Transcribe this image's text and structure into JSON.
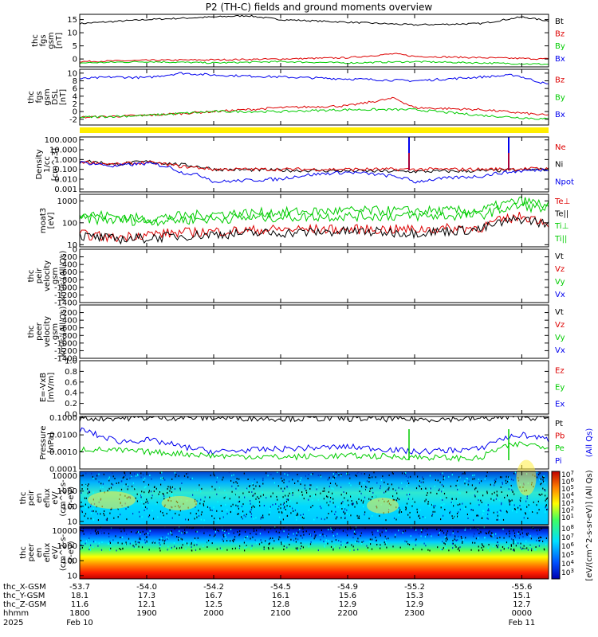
{
  "title": "P2 (TH-C) fields and ground moments overview",
  "chart_data": [
    {
      "type": "line",
      "panel": "fgs_gsm",
      "ylabel": [
        "thc",
        "fgs",
        "gsm",
        "[nT]"
      ],
      "yticks": [
        "15",
        "10",
        "5",
        "0"
      ],
      "ylim": [
        -3,
        17
      ],
      "legend": [
        {
          "name": "Bt",
          "color": "#000000"
        },
        {
          "name": "Bz",
          "color": "#dd0000"
        },
        {
          "name": "By",
          "color": "#00cc00"
        },
        {
          "name": "Bx",
          "color": "#0000ee"
        }
      ],
      "series": [
        {
          "name": "Bt",
          "x": [
            0,
            1,
            2,
            2.5,
            3,
            4,
            5,
            6,
            6.6,
            7
          ],
          "values": [
            13.5,
            15,
            16,
            16.5,
            15,
            14,
            13,
            13.5,
            16,
            14.5
          ]
        },
        {
          "name": "Bz",
          "x": [
            0,
            1,
            2,
            3,
            4,
            4.7,
            5,
            6,
            7
          ],
          "values": [
            -1,
            -0.5,
            -0.3,
            0,
            0.5,
            2,
            1,
            0.5,
            0
          ]
        },
        {
          "name": "By",
          "x": [
            0,
            1,
            2,
            3,
            4,
            5,
            6,
            7
          ],
          "values": [
            -1.5,
            -1,
            -1.5,
            -1,
            -1.5,
            -1,
            -1.5,
            -2
          ]
        }
      ]
    },
    {
      "type": "line",
      "panel": "fgs_gse",
      "ylabel": [
        "thc",
        "fgs",
        "gsm",
        "DSL",
        "[nT]"
      ],
      "yticks": [
        "10",
        "8",
        "6",
        "4",
        "2",
        "0",
        "-2"
      ],
      "ylim": [
        -3.5,
        11
      ],
      "legend": [
        {
          "name": "Bz",
          "color": "#dd0000"
        },
        {
          "name": "By",
          "color": "#00cc00"
        },
        {
          "name": "Bx",
          "color": "#0000ee"
        }
      ],
      "series": [
        {
          "name": "Bx",
          "x": [
            0,
            0.5,
            1,
            1.5,
            2,
            3,
            4,
            5,
            6,
            6.5,
            7
          ],
          "values": [
            8.5,
            9,
            8.8,
            10,
            9.5,
            9,
            8.5,
            8,
            9,
            9.5,
            7
          ]
        },
        {
          "name": "Bz",
          "x": [
            0,
            1,
            2,
            3,
            4,
            4.7,
            5,
            6,
            7
          ],
          "values": [
            -1.5,
            -1,
            0,
            1,
            1.5,
            3.5,
            1,
            0.5,
            -1
          ]
        },
        {
          "name": "By",
          "x": [
            0,
            1,
            2,
            3,
            4,
            5,
            6,
            7
          ],
          "values": [
            -1.5,
            -1,
            0,
            0,
            0.5,
            0.5,
            -1,
            -2
          ]
        }
      ]
    },
    {
      "type": "line",
      "panel": "density",
      "ylabel": [
        "Density",
        "1/cc",
        "[cm^-3]"
      ],
      "yticks": [
        "100.000",
        "10.000",
        "1.000",
        "0.100",
        "0.010",
        "0.001"
      ],
      "ylim": [
        0.0005,
        200
      ],
      "scale": "log",
      "legend": [
        {
          "name": "Ne",
          "color": "#dd0000"
        },
        {
          "name": "Ni",
          "color": "#000000"
        },
        {
          "name": "Npot",
          "color": "#0000ee"
        }
      ],
      "series": [
        {
          "name": "Ni",
          "x": [
            0,
            0.5,
            1,
            1.5,
            2,
            3,
            4,
            5,
            6,
            7
          ],
          "values": [
            0.8,
            0.3,
            0.6,
            0.3,
            0.1,
            0.08,
            0.07,
            0.06,
            0.07,
            0.1
          ]
        },
        {
          "name": "Ne",
          "x": [
            0,
            0.5,
            1,
            1.5,
            2,
            3,
            4,
            5,
            6,
            7
          ],
          "values": [
            0.6,
            0.3,
            0.5,
            0.2,
            0.1,
            0.1,
            0.1,
            0.1,
            0.1,
            0.12
          ]
        },
        {
          "name": "Npot",
          "x": [
            0,
            0.5,
            1,
            1.5,
            2,
            3,
            4,
            5,
            6,
            7
          ],
          "values": [
            0.5,
            0.2,
            0.4,
            0.05,
            0.005,
            0.01,
            0.05,
            0.005,
            0.02,
            0.1
          ]
        }
      ]
    },
    {
      "type": "line",
      "panel": "temperature",
      "ylabel": [
        "moat3",
        "[eV]"
      ],
      "yticks": [
        "1000",
        "100",
        "10"
      ],
      "ylim": [
        8,
        2000
      ],
      "scale": "log",
      "legend": [
        {
          "name": "Te⊥",
          "color": "#dd0000"
        },
        {
          "name": "Te||",
          "color": "#000000"
        },
        {
          "name": "Ti⊥",
          "color": "#00cc00"
        },
        {
          "name": "Ti||",
          "color": "#00cc00"
        }
      ],
      "series": [
        {
          "name": "Ti⊥",
          "x": [
            0,
            1,
            2,
            3,
            4,
            5,
            6,
            6.6,
            7
          ],
          "values": [
            250,
            150,
            250,
            300,
            350,
            350,
            350,
            1000,
            600
          ]
        },
        {
          "name": "Ti||",
          "x": [
            0,
            1,
            2,
            3,
            4,
            5,
            6,
            6.6,
            7
          ],
          "values": [
            150,
            120,
            150,
            180,
            200,
            200,
            220,
            600,
            400
          ]
        },
        {
          "name": "Te⊥",
          "x": [
            0,
            0.5,
            1,
            2,
            3,
            4,
            5,
            6,
            6.6,
            7
          ],
          "values": [
            30,
            20,
            30,
            40,
            50,
            50,
            50,
            60,
            200,
            100
          ]
        },
        {
          "name": "Te||",
          "x": [
            0,
            0.5,
            1,
            2,
            3,
            4,
            5,
            6,
            6.6,
            7
          ],
          "values": [
            25,
            18,
            20,
            30,
            35,
            40,
            35,
            50,
            150,
            80
          ]
        }
      ]
    },
    {
      "type": "line",
      "panel": "peir_velocity",
      "ylabel": [
        "thc",
        "peir",
        "velocity",
        "gsm",
        "km/s (All Qs)"
      ],
      "yticks": [
        "0",
        "-200",
        "-400",
        "-600",
        "-800",
        "-1000",
        "-1200",
        "-1400"
      ],
      "ylim": [
        -1400,
        0
      ],
      "legend": [
        {
          "name": "Vt",
          "color": "#000000"
        },
        {
          "name": "Vz",
          "color": "#dd0000"
        },
        {
          "name": "Vy",
          "color": "#00cc00"
        },
        {
          "name": "Vx",
          "color": "#0000ee"
        }
      ],
      "series": []
    },
    {
      "type": "line",
      "panel": "peer_velocity",
      "ylabel": [
        "thc",
        "peer",
        "velocity",
        "gsm",
        "km/s (All Qs)"
      ],
      "yticks": [
        "-200",
        "-400",
        "-600",
        "-800",
        "-1000",
        "-1200",
        "-1400"
      ],
      "ylim": [
        -1400,
        0
      ],
      "legend": [
        {
          "name": "Vt",
          "color": "#000000"
        },
        {
          "name": "Vz",
          "color": "#dd0000"
        },
        {
          "name": "Vy",
          "color": "#00cc00"
        },
        {
          "name": "Vx",
          "color": "#0000ee"
        }
      ],
      "series": []
    },
    {
      "type": "line",
      "panel": "efield",
      "ylabel": [
        "E=-VxB",
        "[mV/m]"
      ],
      "yticks": [
        "1.0",
        "0.8",
        "0.6",
        "0.4",
        "0.2",
        "0.0"
      ],
      "ylim": [
        0,
        1
      ],
      "legend": [
        {
          "name": "Ez",
          "color": "#dd0000"
        },
        {
          "name": "Ey",
          "color": "#00cc00"
        },
        {
          "name": "Ex",
          "color": "#0000ee"
        }
      ],
      "series": []
    },
    {
      "type": "line",
      "panel": "pressure",
      "ylabel": [
        "Pressure",
        "[nPa]"
      ],
      "yticks": [
        "0.1000",
        "0.0100",
        "0.0010",
        "0.0001"
      ],
      "ylim": [
        0.0001,
        0.12
      ],
      "scale": "log",
      "legend": [
        {
          "name": "Pt",
          "color": "#000000"
        },
        {
          "name": "Pb",
          "color": "#dd0000"
        },
        {
          "name": "Pe",
          "color": "#00cc00"
        },
        {
          "name": "Pi",
          "color": "#0000ee"
        }
      ],
      "side_label": "(All Qs)",
      "series": [
        {
          "name": "Pt",
          "x": [
            0,
            1,
            2,
            3,
            4,
            5,
            6,
            6.6,
            7
          ],
          "values": [
            0.09,
            0.1,
            0.1,
            0.09,
            0.09,
            0.08,
            0.09,
            0.11,
            0.09
          ]
        },
        {
          "name": "Pi",
          "x": [
            0,
            0.3,
            0.6,
            1,
            1.5,
            2,
            3,
            4,
            5,
            6,
            6.6,
            7
          ],
          "values": [
            0.02,
            0.008,
            0.004,
            0.005,
            0.002,
            0.001,
            0.0015,
            0.002,
            0.001,
            0.0015,
            0.01,
            0.005
          ]
        },
        {
          "name": "Pe",
          "x": [
            0,
            1,
            2,
            3,
            4,
            5,
            6,
            6.6,
            7
          ],
          "values": [
            0.0015,
            0.001,
            0.0006,
            0.0005,
            0.0006,
            0.0005,
            0.0004,
            0.003,
            0.002
          ]
        }
      ]
    },
    {
      "type": "heatmap",
      "panel": "peir_spectrogram",
      "ylabel": [
        "thc",
        "peir",
        "en",
        "eflux",
        "eV/",
        "(cm^2-s-",
        "sr-eV)"
      ],
      "yticks": [
        "10000",
        "1000",
        "100",
        "10"
      ],
      "scale": "log"
    },
    {
      "type": "heatmap",
      "panel": "peer_spectrogram",
      "ylabel": [
        "thc",
        "peer",
        "en",
        "eflux",
        "eV/",
        "(cm^2-s-",
        "sr-eV)"
      ],
      "yticks": [
        "10000",
        "1000",
        "100",
        "10"
      ],
      "scale": "log"
    }
  ],
  "colorbar": {
    "label": "[eV/(cm^2-s-sr-eV)] (All Qs)",
    "upper_ticks": [
      "10^7",
      "10^6",
      "10^5",
      "10^4",
      "10^3",
      "10^2",
      "10^1"
    ],
    "lower_ticks": [
      "10^8",
      "10^7",
      "10^6",
      "10^5",
      "10^4",
      "10^3"
    ]
  },
  "time_axis": {
    "rows": [
      {
        "label": "thc_X-GSM",
        "values": [
          "-53.7",
          "-54.0",
          "-54.2",
          "-54.5",
          "-54.9",
          "-55.2",
          "-55.6"
        ]
      },
      {
        "label": "thc_Y-GSM",
        "values": [
          "18.1",
          "17.3",
          "16.7",
          "16.1",
          "15.6",
          "15.3",
          "15.1"
        ]
      },
      {
        "label": "thc_Z-GSM",
        "values": [
          "11.6",
          "12.1",
          "12.5",
          "12.8",
          "12.9",
          "12.9",
          "12.7"
        ]
      },
      {
        "label": "hhmm",
        "values": [
          "1800",
          "1900",
          "2000",
          "2100",
          "2200",
          "2300",
          "0000"
        ]
      }
    ],
    "year": "2025",
    "date_start": "Feb 10",
    "date_end": "Feb 11"
  }
}
